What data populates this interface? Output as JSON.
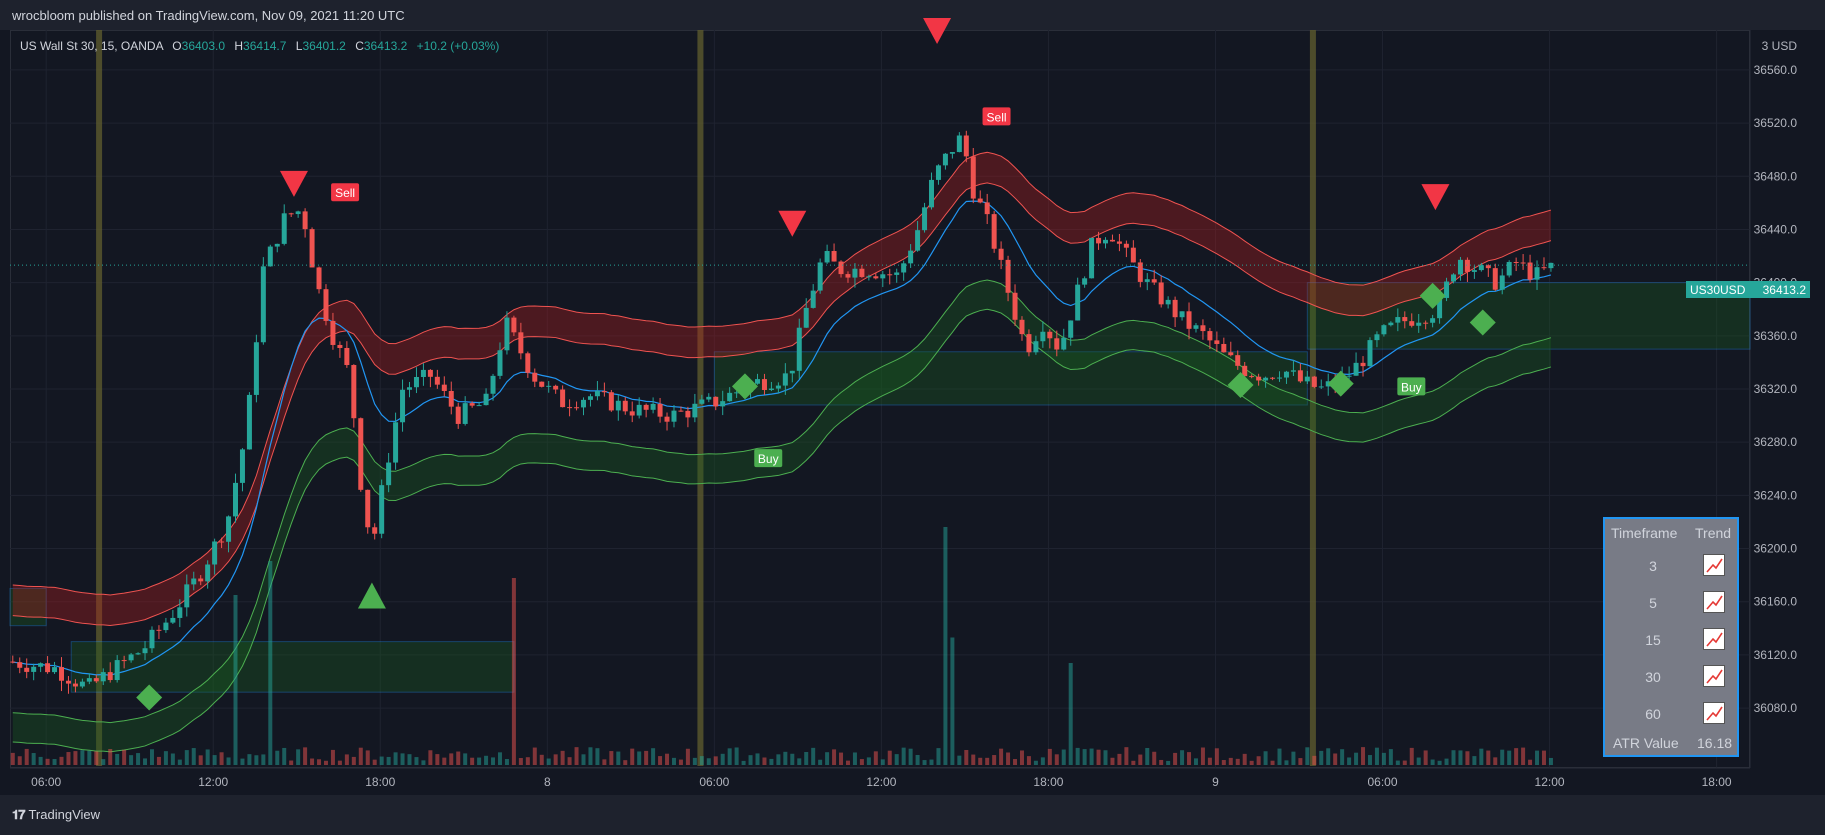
{
  "header": {
    "text": "wrocbloom published on TradingView.com, Nov 09, 2021 11:20 UTC"
  },
  "legend": {
    "symbol": "US Wall St 30, 15, OANDA",
    "o_label": "O",
    "o_value": "36403.0",
    "h_label": "H",
    "h_value": "36414.7",
    "l_label": "L",
    "l_value": "36401.2",
    "c_label": "C",
    "c_value": "36413.2",
    "change": "+10.2 (+0.03%)"
  },
  "price_tag": {
    "symbol": "US30USD",
    "value": "36413.2"
  },
  "currency_label": "3 USD",
  "signals": {
    "sell_label": "Sell",
    "buy_label": "Buy"
  },
  "trend_table": {
    "header_timeframe": "Timeframe",
    "header_trend": "Trend",
    "rows": [
      {
        "tf": "3",
        "icon": "trend-up-icon"
      },
      {
        "tf": "5",
        "icon": "trend-up-icon"
      },
      {
        "tf": "15",
        "icon": "trend-up-icon"
      },
      {
        "tf": "30",
        "icon": "trend-up-icon"
      },
      {
        "tf": "60",
        "icon": "trend-up-icon"
      }
    ],
    "atr_label": "ATR Value",
    "atr_value": "16.18"
  },
  "footer": {
    "brand": "TradingView"
  },
  "colors": {
    "up": "#26a69a",
    "down": "#ef5350",
    "ema": "#2196f3",
    "upper_band": "#ef5350",
    "lower_band": "#4caf50",
    "session_line": "#5d5a2e"
  },
  "chart_data": {
    "type": "candlestick",
    "y_axis": {
      "ticks": [
        36080,
        36120,
        36160,
        36200,
        36240,
        36280,
        36320,
        36360,
        36400,
        36440,
        36480,
        36520,
        36560
      ],
      "range": [
        36050,
        36590
      ]
    },
    "x_axis": {
      "tick_labels": [
        "06:00",
        "12:00",
        "18:00",
        "8",
        "06:00",
        "12:00",
        "18:00",
        "9",
        "06:00",
        "12:00",
        "18:00"
      ],
      "tick_times_hours": [
        6,
        12,
        18,
        24,
        30,
        36,
        42,
        48,
        54,
        60,
        66
      ],
      "range_hours": [
        4.7,
        67.2
      ]
    },
    "last_price": 36413.2,
    "close_path": [
      {
        "t": 4.7,
        "p": 36115
      },
      {
        "t": 6.3,
        "p": 36110
      },
      {
        "t": 7.5,
        "p": 36095
      },
      {
        "t": 8.5,
        "p": 36110
      },
      {
        "t": 9.5,
        "p": 36125
      },
      {
        "t": 10.5,
        "p": 36150
      },
      {
        "t": 11.5,
        "p": 36180
      },
      {
        "t": 12.5,
        "p": 36220
      },
      {
        "t": 13.2,
        "p": 36290
      },
      {
        "t": 13.8,
        "p": 36410
      },
      {
        "t": 14.6,
        "p": 36450
      },
      {
        "t": 15.2,
        "p": 36455
      },
      {
        "t": 15.7,
        "p": 36400
      },
      {
        "t": 16.3,
        "p": 36360
      },
      {
        "t": 16.9,
        "p": 36330
      },
      {
        "t": 17.3,
        "p": 36250
      },
      {
        "t": 17.7,
        "p": 36200
      },
      {
        "t": 18.2,
        "p": 36260
      },
      {
        "t": 18.8,
        "p": 36320
      },
      {
        "t": 19.8,
        "p": 36330
      },
      {
        "t": 20.8,
        "p": 36300
      },
      {
        "t": 21.8,
        "p": 36310
      },
      {
        "t": 22.5,
        "p": 36370
      },
      {
        "t": 23.5,
        "p": 36330
      },
      {
        "t": 24.5,
        "p": 36310
      },
      {
        "t": 25.5,
        "p": 36315
      },
      {
        "t": 27,
        "p": 36305
      },
      {
        "t": 28.5,
        "p": 36300
      },
      {
        "t": 30,
        "p": 36310
      },
      {
        "t": 31.5,
        "p": 36325
      },
      {
        "t": 32.7,
        "p": 36330
      },
      {
        "t": 33.3,
        "p": 36380
      },
      {
        "t": 33.9,
        "p": 36420
      },
      {
        "t": 34.5,
        "p": 36410
      },
      {
        "t": 35.5,
        "p": 36410
      },
      {
        "t": 36.6,
        "p": 36405
      },
      {
        "t": 37.3,
        "p": 36440
      },
      {
        "t": 37.9,
        "p": 36480
      },
      {
        "t": 38.5,
        "p": 36500
      },
      {
        "t": 38.9,
        "p": 36510
      },
      {
        "t": 39.3,
        "p": 36470
      },
      {
        "t": 39.9,
        "p": 36440
      },
      {
        "t": 40.6,
        "p": 36390
      },
      {
        "t": 41.2,
        "p": 36350
      },
      {
        "t": 41.8,
        "p": 36370
      },
      {
        "t": 42.4,
        "p": 36350
      },
      {
        "t": 43,
        "p": 36390
      },
      {
        "t": 43.6,
        "p": 36430
      },
      {
        "t": 44.2,
        "p": 36440
      },
      {
        "t": 44.8,
        "p": 36420
      },
      {
        "t": 45.5,
        "p": 36400
      },
      {
        "t": 46.2,
        "p": 36385
      },
      {
        "t": 46.9,
        "p": 36370
      },
      {
        "t": 47.6,
        "p": 36360
      },
      {
        "t": 48.3,
        "p": 36345
      },
      {
        "t": 49,
        "p": 36335
      },
      {
        "t": 49.7,
        "p": 36330
      },
      {
        "t": 50.4,
        "p": 36335
      },
      {
        "t": 51.1,
        "p": 36325
      },
      {
        "t": 51.8,
        "p": 36320
      },
      {
        "t": 52.5,
        "p": 36325
      },
      {
        "t": 53.2,
        "p": 36340
      },
      {
        "t": 53.9,
        "p": 36360
      },
      {
        "t": 54.6,
        "p": 36370
      },
      {
        "t": 55.3,
        "p": 36375
      },
      {
        "t": 56,
        "p": 36380
      },
      {
        "t": 56.7,
        "p": 36420
      },
      {
        "t": 57.4,
        "p": 36410
      },
      {
        "t": 58.1,
        "p": 36400
      },
      {
        "t": 58.8,
        "p": 36415
      },
      {
        "t": 59.5,
        "p": 36405
      },
      {
        "t": 60.2,
        "p": 36413
      }
    ],
    "volume_spikes": [
      {
        "t": 12.8,
        "v": 1.0,
        "dir": "up"
      },
      {
        "t": 14.0,
        "v": 1.2,
        "dir": "up"
      },
      {
        "t": 22.9,
        "v": 1.1,
        "dir": "up"
      },
      {
        "t": 38.2,
        "v": 1.4,
        "dir": "down"
      },
      {
        "t": 38.6,
        "v": 0.75,
        "dir": "up"
      },
      {
        "t": 42.9,
        "v": 0.6,
        "dir": "down"
      }
    ],
    "session_lines_hours": [
      7.9,
      29.5,
      51.5
    ],
    "zones": [
      {
        "t0": 4.7,
        "t1": 6.0,
        "top": 36170,
        "bottom": 36142
      },
      {
        "t0": 6.9,
        "t1": 22.8,
        "top": 36130,
        "bottom": 36092
      },
      {
        "t0": 30.0,
        "t1": 51.3,
        "top": 36348,
        "bottom": 36308
      },
      {
        "t0": 51.3,
        "t1": 67.2,
        "top": 36400,
        "bottom": 36350
      }
    ],
    "sell_triangles": [
      {
        "t": 14.9,
        "p": 36460
      },
      {
        "t": 32.8,
        "p": 36430
      },
      {
        "t": 38.0,
        "p": 36575
      },
      {
        "t": 55.9,
        "p": 36450
      }
    ],
    "buy_triangles": [
      {
        "t": 17.7,
        "p": 36185
      }
    ],
    "sell_labels": [
      {
        "t": 16.7,
        "p": 36468
      },
      {
        "t": 40.1,
        "p": 36525
      }
    ],
    "buy_labels": [
      {
        "t": 31.9,
        "p": 36268
      },
      {
        "t": 55.0,
        "p": 36322
      }
    ],
    "diamonds": [
      {
        "t": 9.7,
        "p": 36088
      },
      {
        "t": 31.1,
        "p": 36322
      },
      {
        "t": 48.9,
        "p": 36323
      },
      {
        "t": 52.5,
        "p": 36324
      },
      {
        "t": 55.8,
        "p": 36390
      },
      {
        "t": 57.6,
        "p": 36370
      }
    ]
  }
}
